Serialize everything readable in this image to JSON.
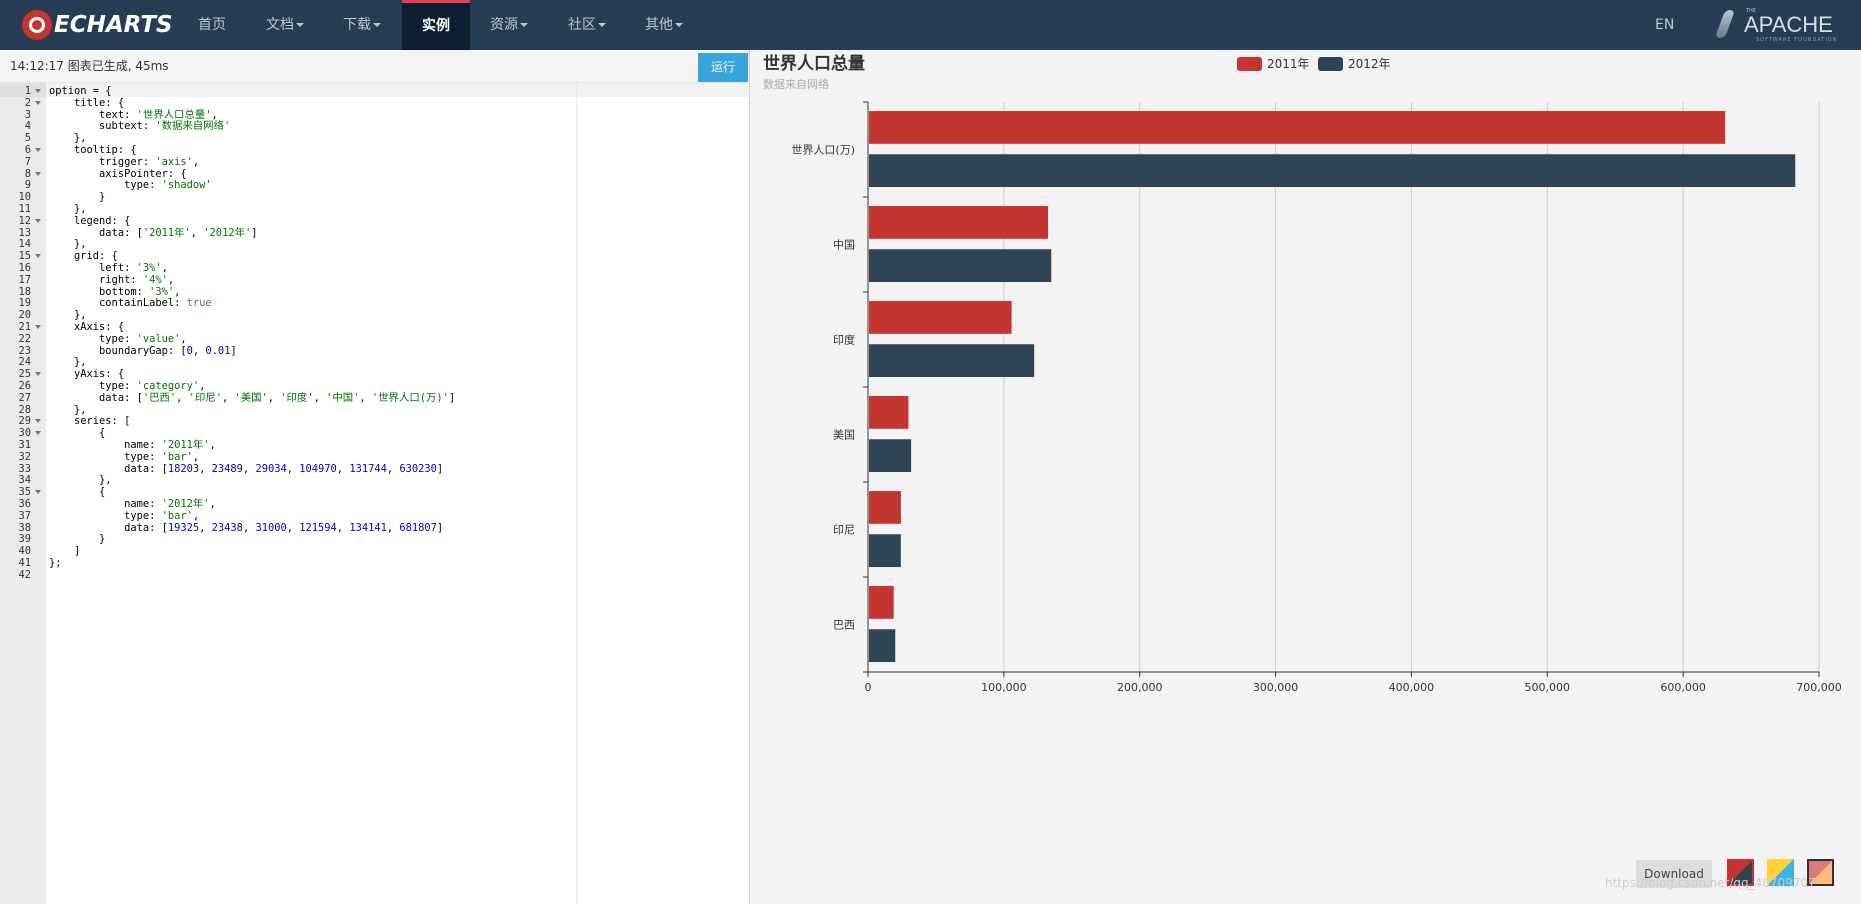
{
  "nav": {
    "logo_text": "ECHARTS",
    "items": [
      "首页",
      "文档",
      "下载",
      "实例",
      "资源",
      "社区",
      "其他"
    ],
    "active_index": 3,
    "lang": "EN",
    "apache": {
      "the": "THE",
      "word": "APACHE",
      "foundation": "SOFTWARE FOUNDATION"
    }
  },
  "editor": {
    "status": "14:12:17   图表已生成, 45ms",
    "run_label": "运行",
    "lines": [
      "option = {",
      "    title: {",
      "        text: '世界人口总量',",
      "        subtext: '数据来自网络'",
      "    },",
      "    tooltip: {",
      "        trigger: 'axis',",
      "        axisPointer: {",
      "            type: 'shadow'",
      "        }",
      "    },",
      "    legend: {",
      "        data: ['2011年', '2012年']",
      "    },",
      "    grid: {",
      "        left: '3%',",
      "        right: '4%',",
      "        bottom: '3%',",
      "        containLabel: true",
      "    },",
      "    xAxis: {",
      "        type: 'value',",
      "        boundaryGap: [0, 0.01]",
      "    },",
      "    yAxis: {",
      "        type: 'category',",
      "        data: ['巴西', '印尼', '美国', '印度', '中国', '世界人口(万)']",
      "    },",
      "    series: [",
      "        {",
      "            name: '2011年',",
      "            type: 'bar',",
      "            data: [18203, 23489, 29034, 104970, 131744, 630230]",
      "        },",
      "        {",
      "            name: '2012年',",
      "            type: 'bar',",
      "            data: [19325, 23438, 31000, 121594, 134141, 681807]",
      "        }",
      "    ]",
      "};",
      ""
    ],
    "fold_lines": [
      1,
      2,
      6,
      8,
      12,
      15,
      21,
      25,
      29,
      30,
      35
    ]
  },
  "chart_data": {
    "type": "bar",
    "orientation": "horizontal",
    "title": "世界人口总量",
    "subtitle": "数据来自网络",
    "categories": [
      "巴西",
      "印尼",
      "美国",
      "印度",
      "中国",
      "世界人口(万)"
    ],
    "series": [
      {
        "name": "2011年",
        "values": [
          18203,
          23489,
          29034,
          104970,
          131744,
          630230
        ],
        "color": "#c23531"
      },
      {
        "name": "2012年",
        "values": [
          19325,
          23438,
          31000,
          121594,
          134141,
          681807
        ],
        "color": "#2f4554"
      }
    ],
    "xlim": [
      0,
      700000
    ],
    "x_ticks": [
      "0",
      "100,000",
      "200,000",
      "300,000",
      "400,000",
      "500,000",
      "600,000",
      "700,000"
    ],
    "legend_position": "top-center",
    "grid": true
  },
  "toolbar": {
    "download_label": "Download"
  },
  "watermark": "https://blog.csdn.net/qq_40709707"
}
